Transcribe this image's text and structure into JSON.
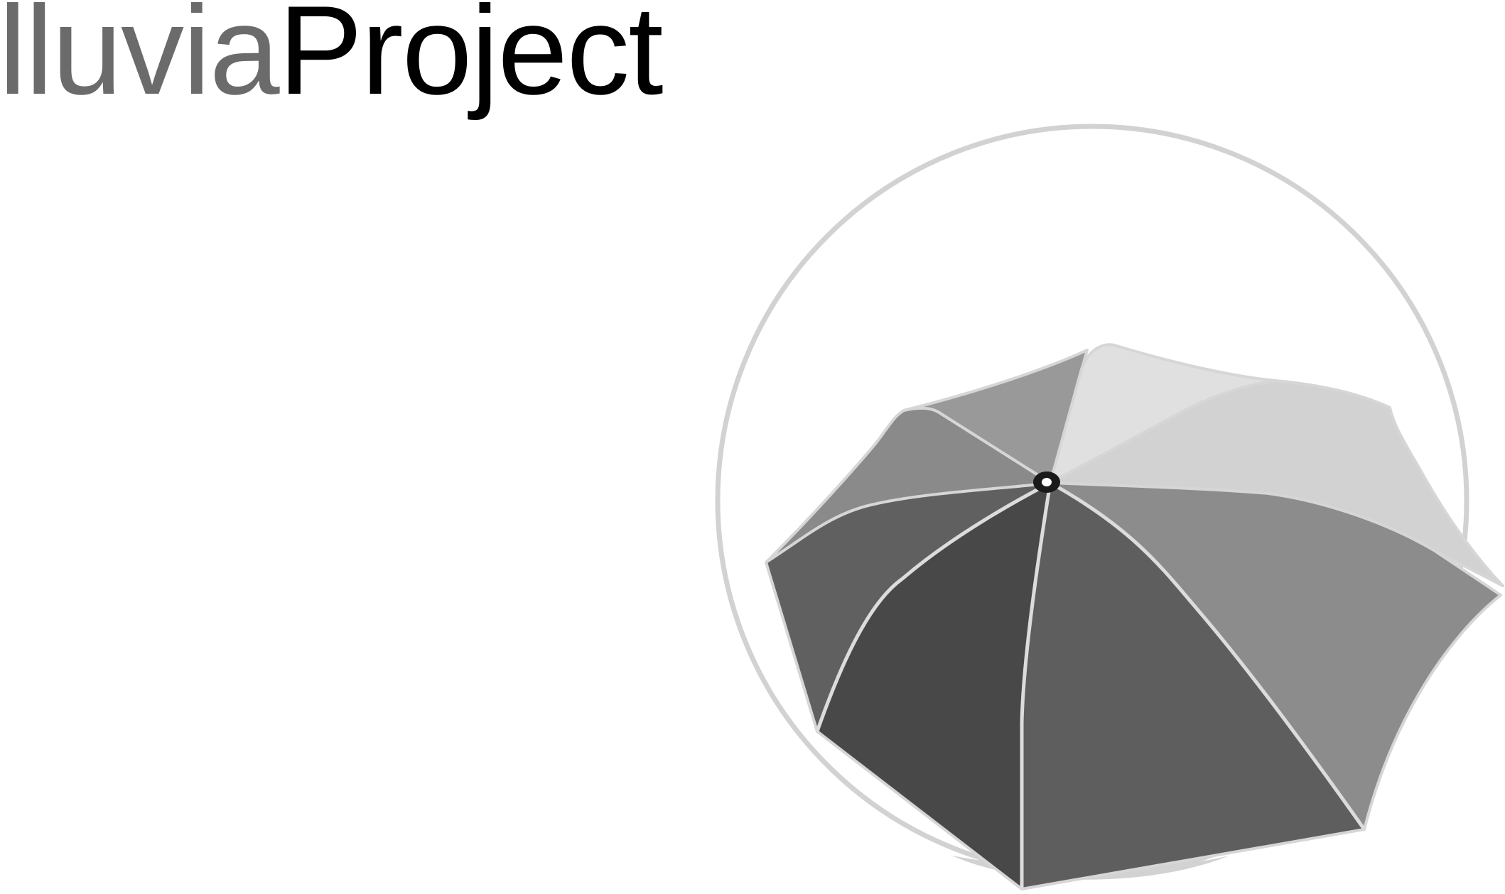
{
  "logo": {
    "part1": "lluvia",
    "part2": "Project",
    "colors": {
      "part1": "#6b6b6b",
      "part2": "#000000"
    }
  },
  "emblem": {
    "icon": "umbrella-icon",
    "ring_color": "#d2d2d2",
    "panel_colors": [
      "#e0e0e0",
      "#d2d2d2",
      "#8c8c8c",
      "#5e5e5e",
      "#484848",
      "#606060",
      "#8a8a8a",
      "#999999"
    ]
  }
}
